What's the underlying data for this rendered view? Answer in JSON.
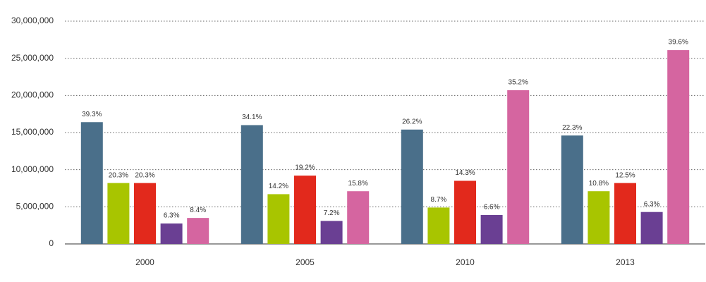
{
  "chart_data": {
    "type": "bar",
    "categories": [
      "2000",
      "2005",
      "2010",
      "2013"
    ],
    "series": [
      {
        "color": "#4a6f8a",
        "values": [
          16400000,
          16000000,
          15400000,
          14600000
        ],
        "share_labels": [
          "39.3%",
          "34.1%",
          "26.2%",
          "22.3%"
        ]
      },
      {
        "color": "#a8c500",
        "values": [
          8200000,
          6700000,
          4900000,
          7100000
        ],
        "share_labels": [
          "20.3%",
          "14.2%",
          "8.7%",
          "10.8%"
        ]
      },
      {
        "color": "#e2291c",
        "values": [
          8200000,
          9200000,
          8500000,
          8200000
        ],
        "share_labels": [
          "20.3%",
          "19.2%",
          "14.3%",
          "12.5%"
        ]
      },
      {
        "color": "#6a3f93",
        "values": [
          2750000,
          3100000,
          3900000,
          4300000
        ],
        "share_labels": [
          "6.3%",
          "7.2%",
          "6.6%",
          "6.3%"
        ]
      },
      {
        "color": "#d565a0",
        "values": [
          3500000,
          7100000,
          20700000,
          26100000
        ],
        "share_labels": [
          "8.4%",
          "15.8%",
          "35.2%",
          "39.6%"
        ]
      }
    ],
    "ylim": [
      0,
      30000000
    ],
    "yticks": [
      0,
      {
        "value": 5000000,
        "label": "5,000,000"
      },
      {
        "value": 10000000,
        "label": "10,000,000"
      },
      {
        "value": 15000000,
        "label": "15,000,000"
      },
      {
        "value": 20000000,
        "label": "20,000,000"
      },
      {
        "value": 25000000,
        "label": "25,000,000"
      },
      {
        "value": 30000000,
        "label": "30,000,000"
      }
    ],
    "grid": true
  }
}
